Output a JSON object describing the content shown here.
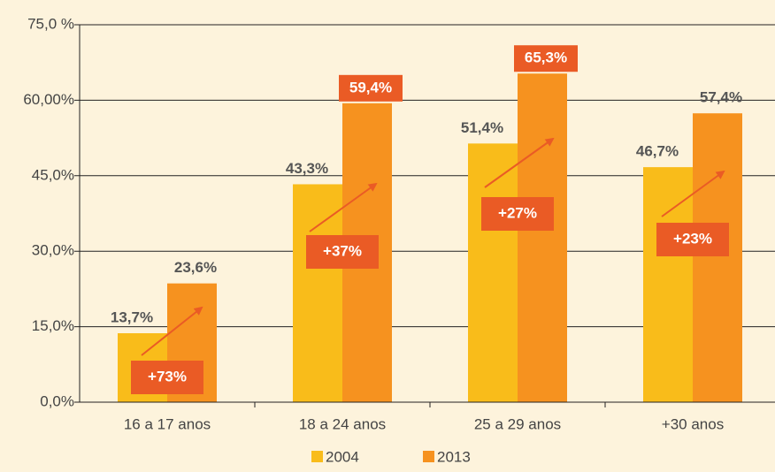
{
  "chart_data": {
    "type": "bar",
    "categories": [
      "16 a 17 anos",
      "18 a 24 anos",
      "25 a 29 anos",
      "+30 anos"
    ],
    "series": [
      {
        "name": "2004",
        "color": "#f9bc1a",
        "values": [
          13.7,
          43.3,
          51.4,
          46.7
        ],
        "value_labels": [
          "13,7%",
          "43,3%",
          "51,4%",
          "46,7%"
        ]
      },
      {
        "name": "2013",
        "color": "#f6921f",
        "values": [
          23.6,
          59.4,
          65.3,
          57.4
        ],
        "value_labels": [
          "23,6%",
          "59,4%",
          "65,3%",
          "57,4%"
        ],
        "label_boxes": [
          false,
          true,
          true,
          false
        ]
      }
    ],
    "annotations": [
      "+73%",
      "+37%",
      "+27%",
      "+23%"
    ],
    "annotation_color": "#ea5b25",
    "ylim": [
      0,
      75
    ],
    "yticks": [
      {
        "value": 0,
        "label": "0,0%"
      },
      {
        "value": 15,
        "label": "15,0%"
      },
      {
        "value": 30,
        "label": "30,0%"
      },
      {
        "value": 45,
        "label": "45,0%"
      },
      {
        "value": 60,
        "label": "60,00%"
      },
      {
        "value": 75,
        "label": "75,0 %"
      }
    ],
    "grid": true,
    "legend": "bottom"
  }
}
